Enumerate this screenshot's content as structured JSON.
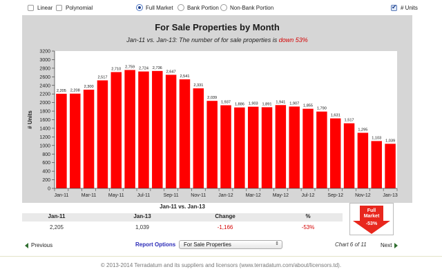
{
  "options": {
    "linear": "Linear",
    "polynomial": "Polynomial",
    "full_market": "Full Market",
    "bank_portion": "Bank Portion",
    "non_bank_portion": "Non-Bank Portion",
    "units": "# Units"
  },
  "subtitle": {
    "prefix": "Jan-11 vs. Jan-13: The number of for sale properties is ",
    "highlight": "down 53%"
  },
  "chart_data": {
    "type": "bar",
    "title": "For Sale Properties by Month",
    "xlabel": "",
    "ylabel": "# Units",
    "ylim": [
      0,
      3200
    ],
    "yticks": [
      0,
      200,
      400,
      600,
      800,
      1000,
      1200,
      1400,
      1600,
      1800,
      2000,
      2200,
      2400,
      2600,
      2800,
      3000,
      3200
    ],
    "categories": [
      "Jan-11",
      "Feb-11",
      "Mar-11",
      "Apr-11",
      "May-11",
      "Jun-11",
      "Jul-11",
      "Aug-11",
      "Sep-11",
      "Oct-11",
      "Nov-11",
      "Dec-11",
      "Jan-12",
      "Feb-12",
      "Mar-12",
      "Apr-12",
      "May-12",
      "Jun-12",
      "Jul-12",
      "Aug-12",
      "Sep-12",
      "Oct-12",
      "Nov-12",
      "Dec-12",
      "Jan-13"
    ],
    "x_tick_labels": [
      "Jan-11",
      "",
      "Mar-11",
      "",
      "May-11",
      "",
      "Jul-11",
      "",
      "Sep-11",
      "",
      "Nov-11",
      "",
      "Jan-12",
      "",
      "Mar-12",
      "",
      "May-12",
      "",
      "Jul-12",
      "",
      "Sep-12",
      "",
      "Nov-12",
      "",
      "Jan-13"
    ],
    "values": [
      2205,
      2208,
      2300,
      2517,
      2710,
      2759,
      2724,
      2736,
      2647,
      2541,
      2331,
      2039,
      1937,
      1886,
      1903,
      1891,
      1941,
      1907,
      1855,
      1790,
      1631,
      1517,
      1295,
      1103,
      1039
    ],
    "data_labels": [
      "2,205",
      "2,208",
      "2,300",
      "2,517",
      "2,710",
      "2,759",
      "2,724",
      "2,736",
      "2,647",
      "2,541",
      "2,331",
      "2,039",
      "1,937",
      "1,886",
      "1,903",
      "1,891",
      "1,941",
      "1,907",
      "1,855",
      "1,790",
      "1,631",
      "1,517",
      "1,295",
      "1,103",
      "1,039"
    ],
    "bar_color": "#ff0000",
    "grid": false,
    "legend": "none"
  },
  "summary": {
    "title": "Jan-11 vs. Jan-13",
    "headers": [
      "Jan-11",
      "Jan-13",
      "Change",
      "%"
    ],
    "values": [
      "2,205",
      "1,039",
      "-1,166",
      "-53%"
    ]
  },
  "badge": {
    "line1": "Full",
    "line2": "Market",
    "line3": "-53%",
    "color": "#e8271d"
  },
  "nav": {
    "previous": "Previous",
    "next": "Next",
    "report_options_label": "Report Options",
    "report_selected": "For Sale Properties",
    "chart_counter": "Chart 6 of 11"
  },
  "footer": "© 2013-2014 Terradatum and its suppliers and licensors (www.terradatum.com/about/licensors.td)."
}
